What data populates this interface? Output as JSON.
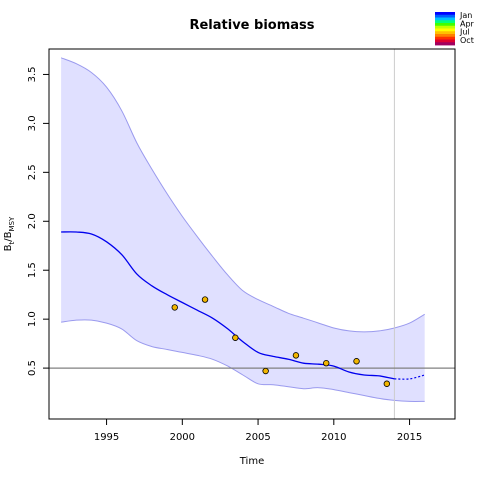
{
  "chart_data": {
    "type": "line",
    "title": "Relative biomass",
    "xlabel": "Time",
    "ylabel_main": "B",
    "ylabel_sub1": "t",
    "ylabel_mid": "/B",
    "ylabel_sub2": "MSY",
    "xlim": [
      1991.2,
      2018.0
    ],
    "ylim": [
      -0.02,
      3.76
    ],
    "x_ticks": [
      1995,
      2000,
      2005,
      2010,
      2015
    ],
    "x_tick_labels": [
      "1995",
      "2000",
      "2005",
      "2010",
      "2015"
    ],
    "y_ticks": [
      0.5,
      1.0,
      1.5,
      2.0,
      2.5,
      3.0,
      3.5
    ],
    "y_tick_labels": [
      "0.5",
      "1.0",
      "1.5",
      "2.0",
      "2.5",
      "3.0",
      "3.5"
    ],
    "reference_line_y": 0.5,
    "vertical_line_x": 2014,
    "colors": {
      "line": "#0000ee",
      "band_fill": "#e0e0ff",
      "band_edge": "#9a9aee",
      "points": "#f2b600",
      "ref_line": "#808080",
      "vline": "#cccccc"
    },
    "series": [
      {
        "name": "estimate",
        "x": [
          1992,
          1993,
          1994,
          1995,
          1996,
          1997,
          1998,
          1999,
          2000,
          2001,
          2002,
          2003,
          2004,
          2005,
          2006,
          2007,
          2008,
          2009,
          2010,
          2011,
          2012,
          2013,
          2014
        ],
        "y": [
          1.89,
          1.89,
          1.87,
          1.79,
          1.66,
          1.46,
          1.34,
          1.25,
          1.17,
          1.09,
          1.01,
          0.9,
          0.77,
          0.66,
          0.62,
          0.59,
          0.55,
          0.54,
          0.52,
          0.46,
          0.43,
          0.42,
          0.39
        ]
      },
      {
        "name": "forecast",
        "x": [
          2014,
          2015,
          2016
        ],
        "y": [
          0.39,
          0.39,
          0.43
        ]
      },
      {
        "name": "upper",
        "x": [
          1992,
          1993,
          1994,
          1995,
          1996,
          1997,
          1998,
          1999,
          2000,
          2001,
          2002,
          2003,
          2004,
          2005,
          2006,
          2007,
          2008,
          2009,
          2010,
          2011,
          2012,
          2013,
          2014,
          2015,
          2016
        ],
        "y": [
          3.67,
          3.61,
          3.52,
          3.37,
          3.13,
          2.8,
          2.53,
          2.28,
          2.05,
          1.84,
          1.64,
          1.45,
          1.29,
          1.2,
          1.13,
          1.06,
          1.01,
          0.96,
          0.91,
          0.88,
          0.87,
          0.88,
          0.91,
          0.96,
          1.05
        ]
      },
      {
        "name": "lower",
        "x": [
          1992,
          1993,
          1994,
          1995,
          1996,
          1997,
          1998,
          1999,
          2000,
          2001,
          2002,
          2003,
          2004,
          2005,
          2006,
          2007,
          2008,
          2009,
          2010,
          2011,
          2012,
          2013,
          2014,
          2015,
          2016
        ],
        "y": [
          0.97,
          0.99,
          0.99,
          0.96,
          0.9,
          0.78,
          0.72,
          0.69,
          0.66,
          0.63,
          0.59,
          0.52,
          0.43,
          0.34,
          0.33,
          0.31,
          0.29,
          0.3,
          0.28,
          0.25,
          0.22,
          0.19,
          0.17,
          0.16,
          0.16
        ]
      }
    ],
    "observations": {
      "x": [
        1999.5,
        2001.5,
        2003.5,
        2005.5,
        2007.5,
        2009.5,
        2011.5,
        2013.5
      ],
      "y": [
        1.12,
        1.2,
        0.81,
        0.47,
        0.63,
        0.55,
        0.57,
        0.34
      ]
    },
    "legend": {
      "placement": "top-right",
      "labels": [
        "Jan",
        "Apr",
        "Jul",
        "Oct"
      ],
      "gradient_colors": [
        "#0000ff",
        "#0060ff",
        "#00c0ff",
        "#00ff80",
        "#40ff00",
        "#c0ff00",
        "#ffff00",
        "#ffc000",
        "#ff8000",
        "#ff3000",
        "#e00030",
        "#a00060"
      ]
    }
  }
}
